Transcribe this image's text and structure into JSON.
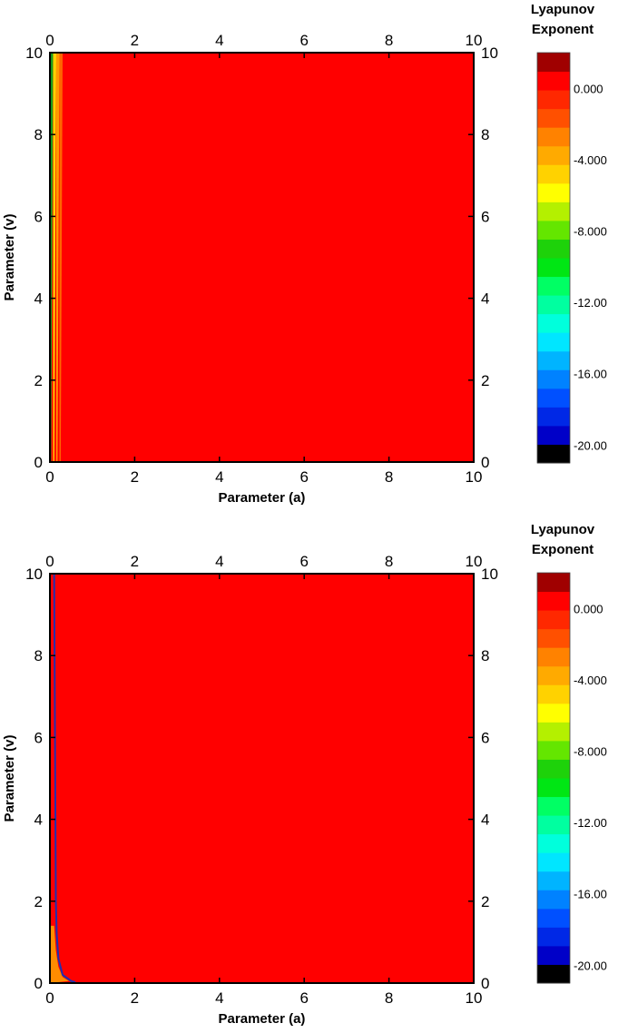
{
  "chart_data": [
    {
      "type": "heatmap",
      "xlabel": "Parameter (a)",
      "ylabel": "Parameter (v)",
      "xlim": [
        0,
        10
      ],
      "ylim": [
        0,
        10
      ],
      "x_ticks": [
        "0",
        "2",
        "4",
        "6",
        "8",
        "10"
      ],
      "y_ticks": [
        "0",
        "2",
        "4",
        "6",
        "8",
        "10"
      ],
      "colorbar": {
        "title_line1": "Lyapunov",
        "title_line2": "Exponent",
        "ticks": [
          "0.000",
          "-4.000",
          "-8.000",
          "-12.00",
          "-16.00",
          "-20.00"
        ],
        "tick_values": [
          0,
          -4,
          -8,
          -12,
          -16,
          -20
        ],
        "range": [
          -21,
          2
        ]
      },
      "field": {
        "dominant_value": 0.0,
        "dominant_color": "#ff0000",
        "boundary_strip": {
          "a_range": [
            0,
            0.3
          ],
          "v_range": [
            0,
            10
          ],
          "colors": [
            "#1a9a1a",
            "#ffd200",
            "#ff9a00",
            "#ff6400"
          ]
        }
      }
    },
    {
      "type": "heatmap",
      "xlabel": "Parameter (a)",
      "ylabel": "Parameter (v)",
      "xlim": [
        0,
        10
      ],
      "ylim": [
        0,
        10
      ],
      "x_ticks": [
        "0",
        "2",
        "4",
        "6",
        "8",
        "10"
      ],
      "y_ticks": [
        "0",
        "2",
        "4",
        "6",
        "8",
        "10"
      ],
      "colorbar": {
        "title_line1": "Lyapunov",
        "title_line2": "Exponent",
        "ticks": [
          "0.000",
          "-4.000",
          "-8.000",
          "-12.00",
          "-16.00",
          "-20.00"
        ],
        "tick_values": [
          0,
          -4,
          -8,
          -12,
          -16,
          -20
        ],
        "range": [
          -21,
          2
        ]
      },
      "field": {
        "dominant_value": 0.0,
        "dominant_color": "#ff0000",
        "boundary_curve": {
          "color": "#2030b0",
          "points": [
            [
              0.1,
              10
            ],
            [
              0.12,
              6
            ],
            [
              0.14,
              2
            ],
            [
              0.16,
              1.2
            ],
            [
              0.2,
              0.6
            ],
            [
              0.3,
              0.2
            ],
            [
              0.5,
              0.05
            ],
            [
              0.6,
              0.02
            ]
          ]
        },
        "orange_region": {
          "color": "#ff8c00",
          "points": [
            [
              0,
              0
            ],
            [
              0,
              1.4
            ],
            [
              0.1,
              1.4
            ],
            [
              0.14,
              0.8
            ],
            [
              0.2,
              0.4
            ],
            [
              0.3,
              0.15
            ],
            [
              0.45,
              0.05
            ],
            [
              0,
              0
            ]
          ]
        }
      }
    }
  ],
  "colormap": [
    "#000000",
    "#0000c8",
    "#0028e6",
    "#0050ff",
    "#0082ff",
    "#00b4ff",
    "#00e6ff",
    "#00ffdc",
    "#00ffa0",
    "#00ff64",
    "#00e614",
    "#1ed20a",
    "#64e600",
    "#b4f000",
    "#ffff00",
    "#ffd200",
    "#ffaa00",
    "#ff8200",
    "#ff5000",
    "#ff2800",
    "#ff0000",
    "#a00000"
  ]
}
